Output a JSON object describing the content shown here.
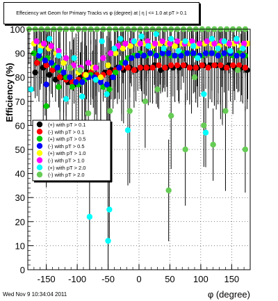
{
  "chart_data": {
    "type": "scatter",
    "title": "Effeciency wrt Geom for Primary Tracks vs φ (degree) at | η | <= 1.0 at pT > 0.1",
    "xlabel": "φ (degree)",
    "ylabel": "Efficiency (%)",
    "xlim": [
      -180,
      180
    ],
    "ylim": [
      0,
      100
    ],
    "x_ticks": [
      -150,
      -100,
      -50,
      0,
      50,
      100,
      150
    ],
    "y_ticks": [
      0,
      10,
      20,
      30,
      40,
      50,
      60,
      70,
      80,
      90,
      100
    ],
    "grid": true,
    "legend_placement": "center-left",
    "series": [
      {
        "name": "(+) with pT > 0.1",
        "color": "#000000",
        "points": [
          [
            -168,
            82
          ],
          [
            -155,
            84
          ],
          [
            -145,
            81
          ],
          [
            -135,
            79
          ],
          [
            -125,
            80
          ],
          [
            -115,
            78
          ],
          [
            -105,
            77
          ],
          [
            -95,
            80
          ],
          [
            -85,
            82
          ],
          [
            -75,
            81
          ],
          [
            -65,
            80
          ],
          [
            -55,
            82
          ],
          [
            -45,
            83
          ],
          [
            -35,
            84
          ],
          [
            -25,
            83
          ],
          [
            -15,
            84
          ],
          [
            -5,
            83
          ],
          [
            5,
            84
          ],
          [
            15,
            84
          ],
          [
            25,
            85
          ],
          [
            35,
            83
          ],
          [
            45,
            84
          ],
          [
            55,
            84
          ],
          [
            65,
            84
          ],
          [
            75,
            85
          ],
          [
            85,
            84
          ],
          [
            95,
            84
          ],
          [
            105,
            85
          ],
          [
            115,
            85
          ],
          [
            125,
            85
          ],
          [
            135,
            84
          ],
          [
            145,
            85
          ],
          [
            155,
            84
          ],
          [
            165,
            84
          ],
          [
            175,
            83
          ]
        ]
      },
      {
        "name": "(-) with pT > 0.1",
        "color": "#ff0000",
        "points": [
          [
            -165,
            86
          ],
          [
            -150,
            85
          ],
          [
            -140,
            83
          ],
          [
            -128,
            80
          ],
          [
            -118,
            79
          ],
          [
            -108,
            78
          ],
          [
            -98,
            79
          ],
          [
            -88,
            81
          ],
          [
            -78,
            82
          ],
          [
            -68,
            81
          ],
          [
            -58,
            81
          ],
          [
            -48,
            82
          ],
          [
            -38,
            83
          ],
          [
            -28,
            84
          ],
          [
            -18,
            84
          ],
          [
            -8,
            83
          ],
          [
            2,
            84
          ],
          [
            12,
            84
          ],
          [
            22,
            84
          ],
          [
            32,
            85
          ],
          [
            42,
            84
          ],
          [
            52,
            85
          ],
          [
            62,
            85
          ],
          [
            72,
            85
          ],
          [
            82,
            84
          ],
          [
            92,
            84
          ],
          [
            102,
            85
          ],
          [
            112,
            84
          ],
          [
            122,
            85
          ],
          [
            132,
            85
          ],
          [
            142,
            84
          ],
          [
            152,
            85
          ],
          [
            162,
            85
          ],
          [
            172,
            84
          ]
        ]
      },
      {
        "name": "(+) with pT > 0.5",
        "color": "#00cc00",
        "points": [
          [
            -170,
            90
          ],
          [
            -160,
            88
          ],
          [
            -148,
            88
          ],
          [
            -138,
            85
          ],
          [
            -128,
            83
          ],
          [
            -118,
            80
          ],
          [
            -108,
            76
          ],
          [
            -98,
            77
          ],
          [
            -88,
            79
          ],
          [
            -78,
            81
          ],
          [
            -68,
            79
          ],
          [
            -58,
            76
          ],
          [
            -48,
            75
          ],
          [
            -38,
            82
          ],
          [
            -28,
            86
          ],
          [
            -18,
            88
          ],
          [
            -8,
            89
          ],
          [
            2,
            90
          ],
          [
            12,
            89
          ],
          [
            22,
            90
          ],
          [
            32,
            89
          ],
          [
            42,
            90
          ],
          [
            52,
            89
          ],
          [
            62,
            89
          ],
          [
            72,
            90
          ],
          [
            82,
            90
          ],
          [
            92,
            89
          ],
          [
            102,
            89
          ],
          [
            112,
            90
          ],
          [
            122,
            90
          ],
          [
            132,
            89
          ],
          [
            142,
            90
          ],
          [
            152,
            89
          ],
          [
            162,
            90
          ],
          [
            172,
            89
          ],
          [
            -150,
            68
          ],
          [
            -130,
            76
          ]
        ]
      },
      {
        "name": "(-) with pT > 0.5",
        "color": "#0000ff",
        "points": [
          [
            -162,
            89
          ],
          [
            -152,
            87
          ],
          [
            -142,
            86
          ],
          [
            -132,
            84
          ],
          [
            -122,
            82
          ],
          [
            -112,
            80
          ],
          [
            -102,
            78
          ],
          [
            -92,
            78
          ],
          [
            -82,
            80
          ],
          [
            -72,
            80
          ],
          [
            -62,
            78
          ],
          [
            -52,
            77
          ],
          [
            -42,
            80
          ],
          [
            -32,
            84
          ],
          [
            -22,
            86
          ],
          [
            -12,
            88
          ],
          [
            -2,
            89
          ],
          [
            8,
            89
          ],
          [
            18,
            90
          ],
          [
            28,
            89
          ],
          [
            38,
            90
          ],
          [
            48,
            90
          ],
          [
            58,
            89
          ],
          [
            68,
            89
          ],
          [
            78,
            90
          ],
          [
            88,
            90
          ],
          [
            98,
            89
          ],
          [
            108,
            90
          ],
          [
            118,
            90
          ],
          [
            128,
            89
          ],
          [
            138,
            90
          ],
          [
            148,
            90
          ],
          [
            158,
            89
          ],
          [
            168,
            89
          ],
          [
            -150,
            77
          ]
        ]
      },
      {
        "name": "(+) with pT > 1.0",
        "color": "#ffff00",
        "points": [
          [
            -170,
            94
          ],
          [
            -158,
            93
          ],
          [
            -146,
            92
          ],
          [
            -134,
            90
          ],
          [
            -122,
            86
          ],
          [
            -110,
            84
          ],
          [
            -98,
            82
          ],
          [
            -86,
            81
          ],
          [
            -74,
            84
          ],
          [
            -62,
            80
          ],
          [
            -50,
            85
          ],
          [
            -38,
            90
          ],
          [
            -26,
            92
          ],
          [
            -14,
            93
          ],
          [
            -2,
            94
          ],
          [
            10,
            94
          ],
          [
            22,
            93
          ],
          [
            34,
            94
          ],
          [
            46,
            94
          ],
          [
            58,
            93
          ],
          [
            70,
            94
          ],
          [
            82,
            94
          ],
          [
            94,
            93
          ],
          [
            106,
            94
          ],
          [
            118,
            94
          ],
          [
            130,
            93
          ],
          [
            142,
            94
          ],
          [
            154,
            94
          ],
          [
            166,
            93
          ],
          [
            176,
            94
          ]
        ]
      },
      {
        "name": "(-) with pT > 1.0",
        "color": "#ff00ff",
        "points": [
          [
            -166,
            95
          ],
          [
            -154,
            94
          ],
          [
            -142,
            93
          ],
          [
            -130,
            91
          ],
          [
            -118,
            88
          ],
          [
            -106,
            85
          ],
          [
            -94,
            84
          ],
          [
            -82,
            86
          ],
          [
            -70,
            84
          ],
          [
            -58,
            88
          ],
          [
            -46,
            90
          ],
          [
            -34,
            93
          ],
          [
            -22,
            94
          ],
          [
            -10,
            95
          ],
          [
            2,
            94
          ],
          [
            14,
            95
          ],
          [
            26,
            94
          ],
          [
            38,
            95
          ],
          [
            50,
            94
          ],
          [
            62,
            95
          ],
          [
            74,
            94
          ],
          [
            86,
            95
          ],
          [
            98,
            94
          ],
          [
            110,
            95
          ],
          [
            122,
            94
          ],
          [
            134,
            95
          ],
          [
            146,
            94
          ],
          [
            158,
            95
          ],
          [
            170,
            94
          ]
        ]
      },
      {
        "name": "(+) with pT > 2.0",
        "color": "#00ffff",
        "points": [
          [
            -175,
            75
          ],
          [
            -160,
            91
          ],
          [
            -145,
            96
          ],
          [
            -130,
            89
          ],
          [
            -118,
            71
          ],
          [
            -105,
            88
          ],
          [
            -92,
            72
          ],
          [
            -80,
            22
          ],
          [
            -70,
            79
          ],
          [
            -60,
            95
          ],
          [
            -52,
            73
          ],
          [
            -50,
            12
          ],
          [
            -48,
            25
          ],
          [
            -40,
            92
          ],
          [
            -30,
            96
          ],
          [
            -18,
            58
          ],
          [
            -8,
            95
          ],
          [
            4,
            97
          ],
          [
            15,
            93
          ],
          [
            28,
            98
          ],
          [
            40,
            92
          ],
          [
            52,
            96
          ],
          [
            64,
            91
          ],
          [
            75,
            95
          ],
          [
            88,
            93
          ],
          [
            95,
            88
          ],
          [
            105,
            73
          ],
          [
            108,
            57
          ],
          [
            118,
            96
          ],
          [
            128,
            92
          ],
          [
            138,
            95
          ],
          [
            148,
            91
          ],
          [
            158,
            96
          ],
          [
            168,
            92
          ]
        ]
      },
      {
        "name": "(-) with pT > 2.0",
        "color": "#66cc55",
        "points": [
          [
            -178,
            100
          ],
          [
            -168,
            100
          ],
          [
            -158,
            100
          ],
          [
            -148,
            100
          ],
          [
            -138,
            100
          ],
          [
            -128,
            100
          ],
          [
            -118,
            100
          ],
          [
            -108,
            100
          ],
          [
            -98,
            100
          ],
          [
            -88,
            100
          ],
          [
            -78,
            100
          ],
          [
            -68,
            100
          ],
          [
            -58,
            100
          ],
          [
            -48,
            100
          ],
          [
            -38,
            100
          ],
          [
            -28,
            100
          ],
          [
            -18,
            100
          ],
          [
            -8,
            100
          ],
          [
            2,
            100
          ],
          [
            12,
            100
          ],
          [
            22,
            100
          ],
          [
            32,
            100
          ],
          [
            42,
            100
          ],
          [
            52,
            100
          ],
          [
            62,
            100
          ],
          [
            72,
            100
          ],
          [
            82,
            100
          ],
          [
            92,
            100
          ],
          [
            102,
            100
          ],
          [
            112,
            100
          ],
          [
            122,
            100
          ],
          [
            132,
            100
          ],
          [
            142,
            100
          ],
          [
            152,
            100
          ],
          [
            162,
            100
          ],
          [
            172,
            100
          ],
          [
            -112,
            84
          ],
          [
            -95,
            83
          ],
          [
            -82,
            65
          ],
          [
            -47,
            66
          ],
          [
            -15,
            66
          ],
          [
            10,
            70
          ],
          [
            30,
            75
          ],
          [
            48,
            33
          ],
          [
            52,
            64
          ],
          [
            75,
            50
          ],
          [
            90,
            80
          ],
          [
            105,
            60
          ],
          [
            120,
            52
          ],
          [
            140,
            66
          ],
          [
            172,
            50
          ],
          [
            160,
            83
          ]
        ]
      }
    ]
  },
  "footer": {
    "timestamp": "Wed Nov  9 10:34:04 2011"
  }
}
